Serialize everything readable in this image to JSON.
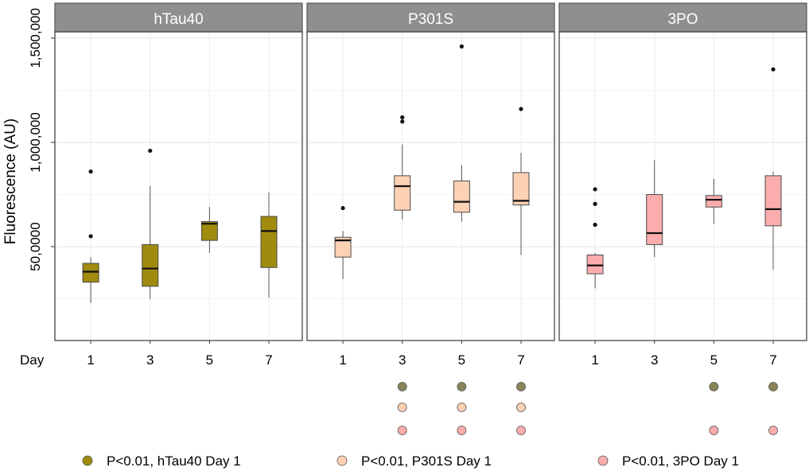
{
  "chart_data": {
    "type": "box",
    "title": "",
    "ylabel": "Fluorescence (AU)",
    "xlabel": "Day",
    "y_tick_labels": [
      "50,0000",
      "1,000,000",
      "1,500,000"
    ],
    "y_tick_values": [
      500000,
      1000000,
      1500000
    ],
    "ylim": [
      50000,
      1530000
    ],
    "categories": [
      "1",
      "3",
      "5",
      "7"
    ],
    "colors": {
      "hTau40": "#a08b0e",
      "P301S": "#fdd1b4",
      "3PO": "#fbadad",
      "strip_bg": "#8f8f8f",
      "dot_hTau40": "#8a8459"
    },
    "panels": [
      {
        "name": "hTau40",
        "boxes": [
          {
            "day": "1",
            "q1": 330000,
            "median": 380000,
            "q3": 420000,
            "lower": 230000,
            "upper": 450000,
            "outliers": [
              550000,
              860000
            ]
          },
          {
            "day": "3",
            "q1": 310000,
            "median": 395000,
            "q3": 510000,
            "lower": 248000,
            "upper": 790000,
            "outliers": [
              960000
            ]
          },
          {
            "day": "5",
            "q1": 530000,
            "median": 610000,
            "q3": 620000,
            "lower": 470000,
            "upper": 690000,
            "outliers": []
          },
          {
            "day": "7",
            "q1": 400000,
            "median": 575000,
            "q3": 645000,
            "lower": 255000,
            "upper": 760000,
            "outliers": []
          }
        ]
      },
      {
        "name": "P301S",
        "boxes": [
          {
            "day": "1",
            "q1": 450000,
            "median": 530000,
            "q3": 545000,
            "lower": 345000,
            "upper": 575000,
            "outliers": [
              685000
            ]
          },
          {
            "day": "3",
            "q1": 675000,
            "median": 790000,
            "q3": 840000,
            "lower": 630000,
            "upper": 990000,
            "outliers": [
              1100000,
              1120000
            ]
          },
          {
            "day": "5",
            "q1": 665000,
            "median": 715000,
            "q3": 815000,
            "lower": 620000,
            "upper": 890000,
            "outliers": [
              1460000
            ]
          },
          {
            "day": "7",
            "q1": 700000,
            "median": 720000,
            "q3": 855000,
            "lower": 460000,
            "upper": 950000,
            "outliers": [
              1160000
            ]
          }
        ]
      },
      {
        "name": "3PO",
        "boxes": [
          {
            "day": "1",
            "q1": 370000,
            "median": 410000,
            "q3": 460000,
            "lower": 300000,
            "upper": 470000,
            "outliers": [
              605000,
              705000,
              775000
            ]
          },
          {
            "day": "3",
            "q1": 510000,
            "median": 565000,
            "q3": 750000,
            "lower": 450000,
            "upper": 915000,
            "outliers": []
          },
          {
            "day": "5",
            "q1": 690000,
            "median": 725000,
            "q3": 745000,
            "lower": 610000,
            "upper": 825000,
            "outliers": []
          },
          {
            "day": "7",
            "q1": 600000,
            "median": 680000,
            "q3": 840000,
            "lower": 390000,
            "upper": 860000,
            "outliers": [
              1350000
            ]
          }
        ]
      }
    ],
    "significance": {
      "P301S": {
        "3": [
          "hTau40",
          "P301S",
          "3PO"
        ],
        "5": [
          "hTau40",
          "P301S",
          "3PO"
        ],
        "7": [
          "hTau40",
          "P301S",
          "3PO"
        ]
      },
      "3PO": {
        "5": [
          "hTau40",
          "3PO"
        ],
        "7": [
          "hTau40",
          "3PO"
        ]
      }
    },
    "legend": [
      {
        "key": "hTau40",
        "label": "P<0.01, hTau40 Day 1"
      },
      {
        "key": "P301S",
        "label": "P<0.01, P301S Day 1"
      },
      {
        "key": "3PO",
        "label": "P<0.01, 3PO Day 1"
      }
    ]
  }
}
